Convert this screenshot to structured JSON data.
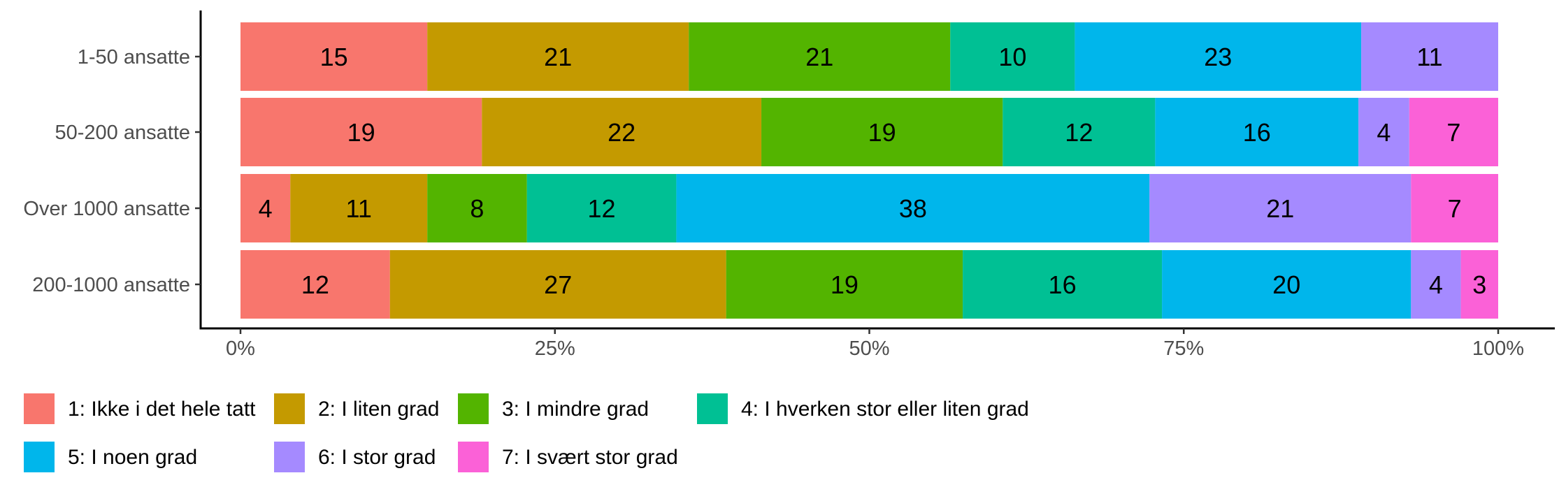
{
  "chart_data": {
    "type": "bar",
    "orientation": "horizontal",
    "stacked": "percent",
    "categories": [
      "1-50 ansatte",
      "50-200 ansatte",
      "Over 1000 ansatte",
      "200-1000 ansatte"
    ],
    "series": [
      {
        "name": "1: Ikke i det hele tatt",
        "color": "#F8766D",
        "values": [
          15,
          19,
          4,
          12
        ]
      },
      {
        "name": "2: I liten grad",
        "color": "#C49A00",
        "values": [
          21,
          22,
          11,
          27
        ]
      },
      {
        "name": "3: I mindre grad",
        "color": "#53B400",
        "values": [
          21,
          19,
          8,
          19
        ]
      },
      {
        "name": "4: I hverken stor eller liten grad",
        "color": "#00C094",
        "values": [
          10,
          12,
          12,
          16
        ]
      },
      {
        "name": "5: I noen grad",
        "color": "#00B6EB",
        "values": [
          23,
          16,
          38,
          20
        ]
      },
      {
        "name": "6: I stor grad",
        "color": "#A58AFF",
        "values": [
          11,
          4,
          21,
          4
        ]
      },
      {
        "name": "7: I svært stor grad",
        "color": "#FB61D7",
        "values": [
          0,
          7,
          7,
          3
        ]
      }
    ],
    "x_ticks": [
      "0%",
      "25%",
      "50%",
      "75%",
      "100%"
    ],
    "xlim": [
      0,
      1
    ],
    "title": "",
    "xlabel": "",
    "ylabel": "",
    "legend_position": "bottom",
    "grid": false
  }
}
